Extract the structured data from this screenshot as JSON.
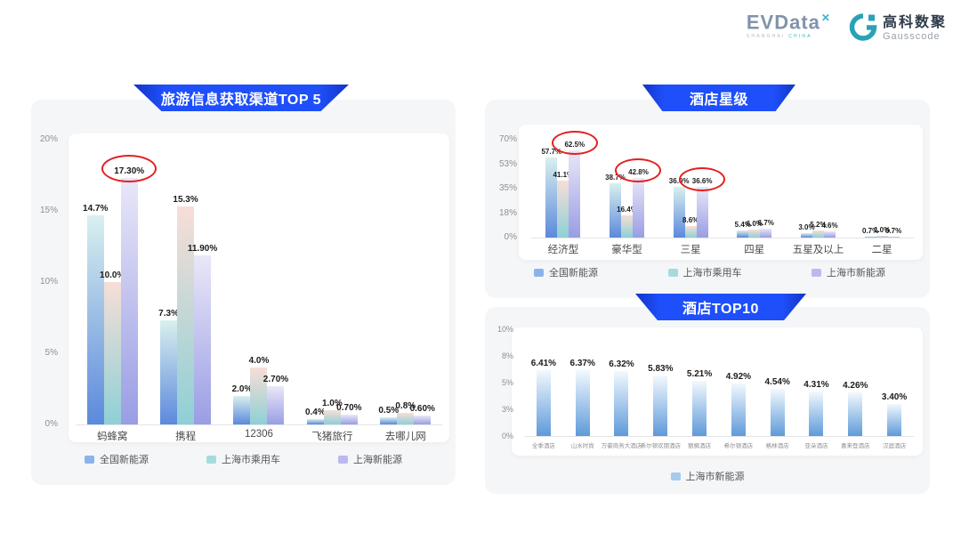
{
  "header": {
    "evdata": {
      "name": "EVData",
      "sup": "✕",
      "tagline_left": "SHANGHAI ",
      "tagline_right": "CHINA"
    },
    "gausscode": {
      "cn": "高科数聚",
      "en": "Gausscode"
    }
  },
  "colors": {
    "banner_blue": "#1e4ffa",
    "highlight_red": "#e51f1f",
    "panel_gray": "#f5f6f8",
    "logo_teal": "#2aa2b6"
  },
  "chart_data": [
    {
      "type": "bar",
      "title": "旅游信息获取渠道TOP 5",
      "categories": [
        "蚂蜂窝",
        "携程",
        "12306",
        "飞猪旅行",
        "去哪儿网"
      ],
      "yticks": [
        "0%",
        "5%",
        "10%",
        "15%",
        "20%"
      ],
      "ytick_values": [
        0,
        5,
        10,
        15,
        20
      ],
      "ylim": [
        0,
        20
      ],
      "grid": false,
      "legend_position": "bottom",
      "series": [
        {
          "name": "全国新能源",
          "swatch": "#8bb3ea",
          "gradient": [
            "#d9f0ee",
            "#5b89dc"
          ],
          "values": [
            14.7,
            7.3,
            2.0,
            0.4,
            0.5
          ],
          "labels": [
            "14.7%",
            "7.3%",
            "2.0%",
            "0.4%",
            "0.5%"
          ]
        },
        {
          "name": "上海市乘用车",
          "swatch": "#a5dbde",
          "gradient": [
            "#f7ded7",
            "#8ed0d6"
          ],
          "values": [
            10.0,
            15.3,
            4.0,
            1.0,
            0.8
          ],
          "labels": [
            "10.0%",
            "15.3%",
            "4.0%",
            "1.0%",
            "0.8%"
          ]
        },
        {
          "name": "上海新能源",
          "swatch": "#bcb8f0",
          "gradient": [
            "#e9e7f8",
            "#9a9de4"
          ],
          "values": [
            17.3,
            11.9,
            2.7,
            0.7,
            0.6
          ],
          "labels": [
            "17.30%",
            "11.90%",
            "2.70%",
            "0.70%",
            "0.60%"
          ]
        }
      ],
      "circled": [
        [
          2,
          0
        ]
      ]
    },
    {
      "type": "bar",
      "title": "酒店星级",
      "categories": [
        "经济型",
        "豪华型",
        "三星",
        "四星",
        "五星及以上",
        "二星"
      ],
      "yticks": [
        "0%",
        "18%",
        "35%",
        "53%",
        "70%"
      ],
      "ytick_values": [
        0,
        18,
        35,
        53,
        70
      ],
      "ylim": [
        0,
        70
      ],
      "grid": false,
      "legend_position": "bottom",
      "series": [
        {
          "name": "全国新能源",
          "swatch": "#8bb3ea",
          "gradient": [
            "#d9f0ee",
            "#5b89dc"
          ],
          "values": [
            57.7,
            38.7,
            36.0,
            5.4,
            3.0,
            0.7
          ],
          "labels": [
            "57.7%",
            "38.7%",
            "36.0%",
            "5.4%",
            "3.0%",
            "0.7%"
          ]
        },
        {
          "name": "上海市乘用车",
          "swatch": "#a5dbde",
          "gradient": [
            "#f7ded7",
            "#8ed0d6"
          ],
          "values": [
            41.1,
            16.4,
            8.6,
            6.0,
            5.2,
            1.0
          ],
          "labels": [
            "41.1%",
            "16.4%",
            "8.6%",
            "6.0%",
            "5.2%",
            "1.0%"
          ]
        },
        {
          "name": "上海市新能源",
          "swatch": "#bcb8f0",
          "gradient": [
            "#e9e7f8",
            "#9a9de4"
          ],
          "values": [
            62.5,
            42.8,
            36.6,
            6.7,
            4.6,
            0.7
          ],
          "labels": [
            "62.5%",
            "42.8%",
            "36.6%",
            "6.7%",
            "4.6%",
            "0.7%"
          ]
        }
      ],
      "circled": [
        [
          2,
          0
        ],
        [
          2,
          1
        ],
        [
          2,
          2
        ]
      ]
    },
    {
      "type": "bar",
      "title": "酒店TOP10",
      "categories": [
        "全季酒店",
        "山水时尚",
        "万豪商务大酒店",
        "希尔顿欢朋酒店",
        "丽枫酒店",
        "希尔顿酒店",
        "格林酒店",
        "亚朵酒店",
        "喜来登酒店",
        "汉庭酒店"
      ],
      "yticks": [
        "0%",
        "3%",
        "5%",
        "8%",
        "10%"
      ],
      "ytick_values": [
        0,
        3,
        5,
        8,
        10
      ],
      "ylim": [
        0,
        10
      ],
      "grid": false,
      "legend_position": "bottom",
      "series": [
        {
          "name": "上海市新能源",
          "swatch": "#a6cbee",
          "gradient": [
            "#f2f9fe",
            "#5e9ad9"
          ],
          "values": [
            6.41,
            6.37,
            6.32,
            5.83,
            5.21,
            4.92,
            4.54,
            4.31,
            4.26,
            3.4
          ],
          "labels": [
            "6.41%",
            "6.37%",
            "6.32%",
            "5.83%",
            "5.21%",
            "4.92%",
            "4.54%",
            "4.31%",
            "4.26%",
            "3.40%"
          ]
        }
      ],
      "circled": []
    }
  ]
}
